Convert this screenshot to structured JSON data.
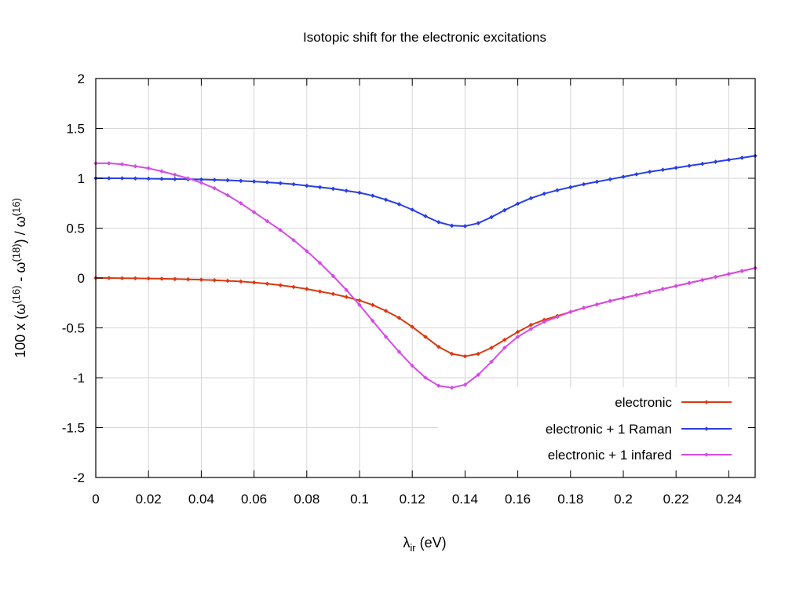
{
  "chart_data": {
    "type": "line",
    "title": "Isotopic shift for the electronic excitations",
    "xlabel_main": "λ",
    "xlabel_sub": "ir",
    "xlabel_unit": " (eV)",
    "ylabel_parts": [
      "100 x (ω",
      "(16)",
      " - ω",
      "(18)",
      ") / ω",
      "(16)"
    ],
    "xlim": [
      0,
      0.25
    ],
    "ylim": [
      -2,
      2
    ],
    "x_ticks": [
      "0",
      "0.02",
      "0.04",
      "0.06",
      "0.08",
      "0.1",
      "0.12",
      "0.14",
      "0.16",
      "0.18",
      "0.2",
      "0.22",
      "0.24"
    ],
    "y_ticks": [
      "-2",
      "-1.5",
      "-1",
      "-0.5",
      "0",
      "0.5",
      "1",
      "1.5",
      "2"
    ],
    "grid": true,
    "legend_position": "bottom-right",
    "x": [
      0,
      0.005,
      0.01,
      0.015,
      0.02,
      0.025,
      0.03,
      0.035,
      0.04,
      0.045,
      0.05,
      0.055,
      0.06,
      0.065,
      0.07,
      0.075,
      0.08,
      0.085,
      0.09,
      0.095,
      0.1,
      0.105,
      0.11,
      0.115,
      0.12,
      0.125,
      0.13,
      0.135,
      0.14,
      0.145,
      0.15,
      0.155,
      0.16,
      0.165,
      0.17,
      0.175,
      0.18,
      0.185,
      0.19,
      0.195,
      0.2,
      0.205,
      0.21,
      0.215,
      0.22,
      0.225,
      0.23,
      0.235,
      0.24,
      0.245,
      0.25
    ],
    "series": [
      {
        "name": "electronic",
        "color": "#d93a12",
        "values": [
          0.0,
          0.0,
          -0.002,
          -0.003,
          -0.005,
          -0.007,
          -0.01,
          -0.013,
          -0.017,
          -0.022,
          -0.028,
          -0.035,
          -0.045,
          -0.057,
          -0.072,
          -0.09,
          -0.11,
          -0.135,
          -0.16,
          -0.19,
          -0.225,
          -0.27,
          -0.33,
          -0.4,
          -0.49,
          -0.59,
          -0.69,
          -0.76,
          -0.785,
          -0.76,
          -0.7,
          -0.62,
          -0.54,
          -0.47,
          -0.42,
          -0.38,
          -0.34,
          -0.3,
          -0.265,
          -0.23,
          -0.2,
          -0.17,
          -0.14,
          -0.11,
          -0.08,
          -0.05,
          -0.02,
          0.01,
          0.04,
          0.07,
          0.1
        ]
      },
      {
        "name": "electronic + 1 Raman",
        "color": "#2a3fe0",
        "values": [
          1.0,
          1.0,
          1.0,
          0.998,
          0.996,
          0.994,
          0.992,
          0.99,
          0.988,
          0.984,
          0.98,
          0.974,
          0.968,
          0.96,
          0.95,
          0.94,
          0.925,
          0.91,
          0.895,
          0.875,
          0.855,
          0.825,
          0.785,
          0.74,
          0.685,
          0.62,
          0.56,
          0.525,
          0.52,
          0.55,
          0.61,
          0.68,
          0.745,
          0.8,
          0.845,
          0.88,
          0.91,
          0.94,
          0.965,
          0.99,
          1.015,
          1.04,
          1.065,
          1.085,
          1.105,
          1.125,
          1.145,
          1.165,
          1.185,
          1.205,
          1.225
        ]
      },
      {
        "name": "electronic + 1 infared",
        "color": "#d44ce6",
        "values": [
          1.15,
          1.15,
          1.14,
          1.12,
          1.1,
          1.07,
          1.035,
          1.0,
          0.955,
          0.9,
          0.83,
          0.75,
          0.66,
          0.57,
          0.48,
          0.38,
          0.27,
          0.15,
          0.02,
          -0.12,
          -0.27,
          -0.43,
          -0.59,
          -0.74,
          -0.88,
          -1.0,
          -1.08,
          -1.1,
          -1.07,
          -0.97,
          -0.84,
          -0.7,
          -0.59,
          -0.51,
          -0.44,
          -0.39,
          -0.34,
          -0.3,
          -0.265,
          -0.23,
          -0.2,
          -0.17,
          -0.14,
          -0.11,
          -0.08,
          -0.05,
          -0.02,
          0.01,
          0.04,
          0.07,
          0.1
        ]
      }
    ]
  }
}
